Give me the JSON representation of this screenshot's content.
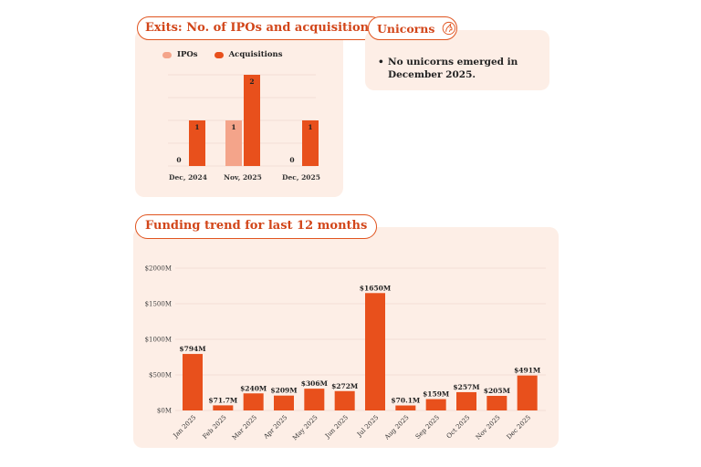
{
  "exits": {
    "title": "Exits: No. of IPOs and acquisitions",
    "legend": [
      "IPOs",
      "Acquisitions"
    ]
  },
  "unicorns": {
    "title": "Unicorns",
    "icon": "unicorn-icon",
    "bullet": "No unicorns emerged in December 2025."
  },
  "funding": {
    "title": "Funding trend for last 12 months"
  },
  "colors": {
    "accent": "#e8501c",
    "ipo": "#f4a48a",
    "card": "#fdeee6"
  },
  "chart_data": [
    {
      "type": "bar",
      "title": "Exits: No. of IPOs and acquisitions",
      "categories": [
        "Dec, 2024",
        "Nov, 2025",
        "Dec, 2025"
      ],
      "series": [
        {
          "name": "IPOs",
          "values": [
            0,
            1,
            0
          ],
          "labels": [
            "0",
            "1",
            "0"
          ]
        },
        {
          "name": "Acquisitions",
          "values": [
            1,
            2,
            1
          ],
          "labels": [
            "1",
            "2",
            "1"
          ]
        }
      ],
      "ylim": [
        0,
        2
      ],
      "legend": "top-left",
      "grid": true
    },
    {
      "type": "bar",
      "title": "Funding trend for last 12 months",
      "categories": [
        "Jan 2025",
        "Feb 2025",
        "Mar 2025",
        "Apr 2025",
        "May 2025",
        "Jun 2025",
        "Jul 2025",
        "Aug 2025",
        "Sep 2025",
        "Oct 2025",
        "Nov 2025",
        "Dec 2025"
      ],
      "values": [
        794,
        71.7,
        240,
        209,
        306,
        272,
        1650,
        70.1,
        159,
        257,
        205,
        491
      ],
      "labels": [
        "$794M",
        "$71.7M",
        "$240M",
        "$209M",
        "$306M",
        "$272M",
        "$1650M",
        "$70.1M",
        "$159M",
        "$257M",
        "$205M",
        "$491M"
      ],
      "yticks": [
        "$0M",
        "$500M",
        "$1000M",
        "$1500M",
        "$2000M"
      ],
      "ylim": [
        0,
        2000
      ],
      "grid": true
    }
  ]
}
